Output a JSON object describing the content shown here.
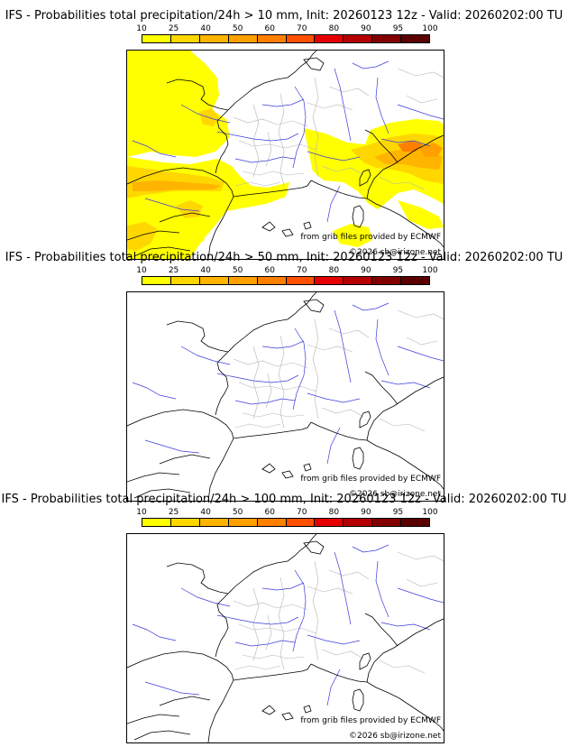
{
  "legend": {
    "ticks": [
      "10",
      "25",
      "40",
      "50",
      "60",
      "70",
      "80",
      "90",
      "95",
      "100"
    ],
    "colors": [
      "#ffff00",
      "#ffd700",
      "#ffb400",
      "#ffa000",
      "#ff7f00",
      "#ff5000",
      "#e60000",
      "#b40000",
      "#820000",
      "#5a0000"
    ]
  },
  "panels": [
    {
      "title": "IFS - Probabilities total precipitation/24h > 10 mm, Init: 20260123 12z - Valid: 20260202:00 TU",
      "has_fill": true
    },
    {
      "title": "IFS - Probabilities total precipitation/24h > 50 mm, Init: 20260123 12z - Valid: 20260202:00 TU",
      "has_fill": false
    },
    {
      "title": "IFS - Probabilities total precipitation/24h > 100 mm, Init: 20260123 12z - Valid: 20260202:00 TU",
      "has_fill": false
    }
  ],
  "credits": {
    "source": "from grib files provided by ECMWF",
    "copyright": "©2026 sb@irizone.net"
  }
}
